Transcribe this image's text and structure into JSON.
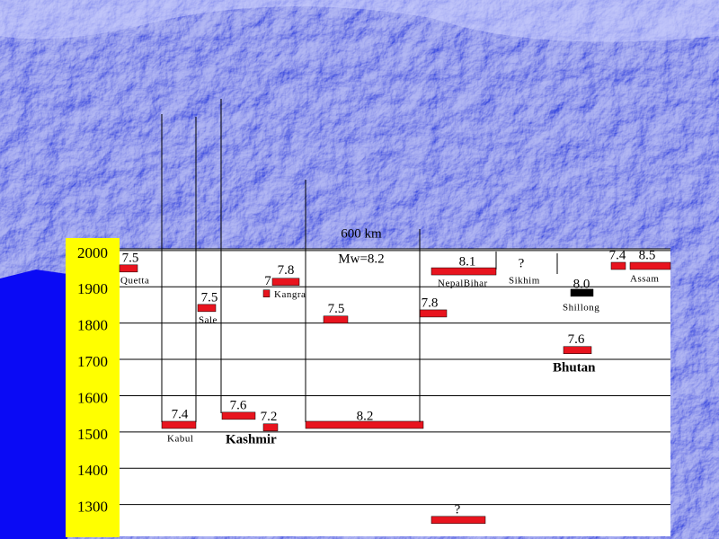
{
  "axis": {
    "ylim": [
      1220,
      2012
    ],
    "yticks": [
      2000,
      1900,
      1800,
      1700,
      1600,
      1500,
      1400,
      1300
    ]
  },
  "annotations": {
    "scale": "600 km",
    "magnitude": "Mw=8.2",
    "kashmir": "Kashmir",
    "bhutan": "Bhutan",
    "sikhim_q": "?",
    "sikhim": "Sikhim"
  },
  "ruptures": [
    {
      "magnitude": "7.5",
      "place": "Quetta",
      "year": 1958,
      "color": "#e8141e"
    },
    {
      "magnitude": "7",
      "place": "Kangra",
      "year": 1889,
      "color": "#e8141e"
    },
    {
      "magnitude": "7.8",
      "year": 1921,
      "color": "#e8141e"
    },
    {
      "magnitude": "7.5",
      "place": "Sale",
      "year": 1849,
      "color": "#e8141e"
    },
    {
      "magnitude": "7.5",
      "year": 1817,
      "color": "#e8141e"
    },
    {
      "magnitude": "8.1",
      "place": "NepalBihar",
      "year": 1950,
      "color": "#e8141e"
    },
    {
      "magnitude": "7.8",
      "year": 1834,
      "color": "#e8141e"
    },
    {
      "magnitude": "8.0",
      "place": "Shillong",
      "year": 1891,
      "color": "#000000"
    },
    {
      "magnitude": "7.6",
      "year": 1733,
      "color": "#e8141e"
    },
    {
      "magnitude": "7.4",
      "year": 1965,
      "color": "#e8141e"
    },
    {
      "magnitude": "8.5",
      "place": "Assam",
      "year": 1965,
      "color": "#e8141e"
    },
    {
      "magnitude": "7.4",
      "place": "Kabul",
      "year": 1527,
      "color": "#e8141e"
    },
    {
      "magnitude": "7.6",
      "year": 1552,
      "color": "#e8141e"
    },
    {
      "magnitude": "7.2",
      "year": 1520,
      "color": "#e8141e"
    },
    {
      "magnitude": "8.2",
      "year": 1527,
      "color": "#e8141e"
    },
    {
      "magnitude": "?",
      "year": 1265,
      "color": "#e8141e"
    }
  ]
}
